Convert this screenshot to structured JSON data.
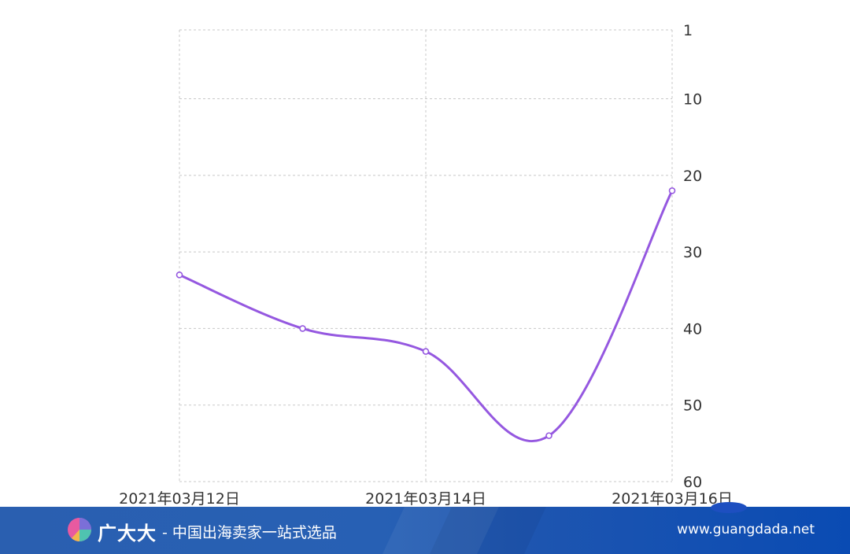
{
  "chart_data": {
    "type": "line",
    "x_ticks": [
      "2021年03月12日",
      "2021年03月14日",
      "2021年03月16日"
    ],
    "y_ticks": [
      "1",
      "10",
      "20",
      "30",
      "40",
      "50",
      "60"
    ],
    "y_tick_values": [
      1,
      10,
      20,
      30,
      40,
      50,
      60
    ],
    "ylim": [
      1,
      60
    ],
    "y_inverted": true,
    "y_axis_position": "right",
    "grid": true,
    "series": [
      {
        "color": "#9558e0",
        "points": [
          {
            "x": "2021-03-12",
            "y": 33
          },
          {
            "x": "2021-03-13",
            "y": 40
          },
          {
            "x": "2021-03-14",
            "y": 43
          },
          {
            "x": "2021-03-15",
            "y": 54
          },
          {
            "x": "2021-03-16",
            "y": 22
          }
        ]
      }
    ]
  },
  "footer": {
    "brand_name": "广大大",
    "slogan": "- 中国出海卖家一站式选品",
    "url": "www.guangdada.net",
    "logo_icon": "pie-chart-logo-icon"
  }
}
